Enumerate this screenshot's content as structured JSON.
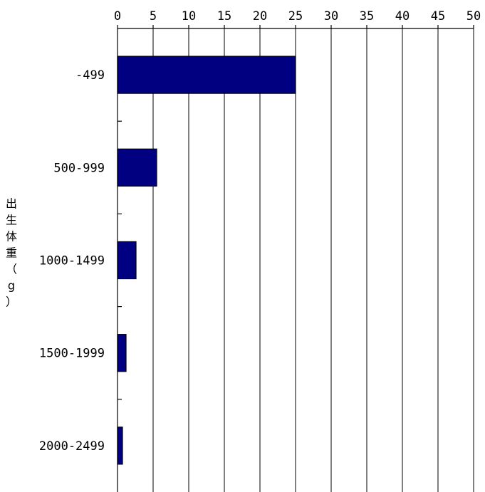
{
  "chart_data": {
    "type": "bar",
    "orientation": "horizontal",
    "categories": [
      "-499",
      "500-999",
      "1000-1499",
      "1500-1999",
      "2000-2499"
    ],
    "values": [
      25,
      5.5,
      2.6,
      1.2,
      0.7
    ],
    "xlim": [
      0,
      50
    ],
    "xticks": [
      0,
      5,
      10,
      15,
      20,
      25,
      30,
      35,
      40,
      45,
      50
    ],
    "x_axis_position": "top",
    "xlabel": "",
    "ylabel": "出生体重（g）",
    "grid": true,
    "bar_color": "#000080"
  }
}
